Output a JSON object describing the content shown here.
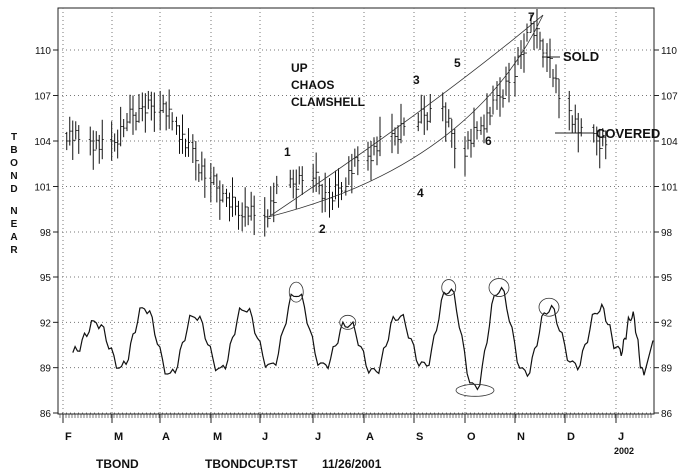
{
  "chart_data": {
    "type": "bar",
    "subtype": "ohlc-with-oscillator",
    "ylabel": "T B O N D   N E A R",
    "price_ticks": [
      "110",
      "107",
      "104",
      "101",
      "98"
    ],
    "oscillator_ticks": [
      "95",
      "92",
      "89",
      "86"
    ],
    "ylim_price": [
      96,
      112
    ],
    "ylim_oscillator": [
      86,
      96
    ],
    "grid": "dotted",
    "month_labels": [
      "F",
      "M",
      "A",
      "M",
      "J",
      "J",
      "A",
      "S",
      "O",
      "N",
      "D",
      "J"
    ],
    "year_label": "2002",
    "annotations": {
      "pattern": [
        "UP",
        "CHAOS",
        "CLAMSHELL"
      ],
      "points": [
        "1",
        "2",
        "3",
        "4",
        "5",
        "6",
        "7"
      ],
      "sold": "SOLD",
      "covered": "COVERED"
    },
    "price_series": [
      {
        "x": "Feb",
        "y": 104.5
      },
      {
        "x": "Feb",
        "y": 104.0
      },
      {
        "x": "Mar",
        "y": 103.5
      },
      {
        "x": "Mar",
        "y": 105.5
      },
      {
        "x": "Mar",
        "y": 106.0
      },
      {
        "x": "Apr",
        "y": 106.5
      },
      {
        "x": "Apr",
        "y": 105.0
      },
      {
        "x": "Apr",
        "y": 103.0
      },
      {
        "x": "May",
        "y": 101.5
      },
      {
        "x": "May",
        "y": 100.0
      },
      {
        "x": "May",
        "y": 99.5
      },
      {
        "x": "Jun",
        "y": 99.0
      },
      {
        "x": "Jun",
        "y": 101.0
      },
      {
        "x": "Jul",
        "y": 101.8
      },
      {
        "x": "Jul",
        "y": 100.0
      },
      {
        "x": "Jul",
        "y": 101.5
      },
      {
        "x": "Aug",
        "y": 103.0
      },
      {
        "x": "Aug",
        "y": 104.0
      },
      {
        "x": "Sep",
        "y": 105.5
      },
      {
        "x": "Sep",
        "y": 106.0
      },
      {
        "x": "Oct",
        "y": 103.5
      },
      {
        "x": "Oct",
        "y": 105.0
      },
      {
        "x": "Oct",
        "y": 106.5
      },
      {
        "x": "Nov",
        "y": 108.5
      },
      {
        "x": "Nov",
        "y": 111.5
      },
      {
        "x": "Nov",
        "y": 110.0
      },
      {
        "x": "Dec",
        "y": 106.0
      },
      {
        "x": "Dec",
        "y": 104.0
      }
    ],
    "oscillator_series": [
      {
        "x": "Feb",
        "y": 90.0
      },
      {
        "x": "Feb",
        "y": 92.0
      },
      {
        "x": "Mar",
        "y": 89.0
      },
      {
        "x": "Mar",
        "y": 93.0
      },
      {
        "x": "Apr",
        "y": 88.5
      },
      {
        "x": "Apr",
        "y": 92.5
      },
      {
        "x": "May",
        "y": 88.8
      },
      {
        "x": "May",
        "y": 93.0
      },
      {
        "x": "Jun",
        "y": 89.0
      },
      {
        "x": "Jun",
        "y": 94.0
      },
      {
        "x": "Jul",
        "y": 89.0
      },
      {
        "x": "Jul",
        "y": 92.0
      },
      {
        "x": "Aug",
        "y": 88.6
      },
      {
        "x": "Aug",
        "y": 92.5
      },
      {
        "x": "Sep",
        "y": 89.0
      },
      {
        "x": "Sep",
        "y": 94.3
      },
      {
        "x": "Oct",
        "y": 87.5
      },
      {
        "x": "Oct",
        "y": 94.3
      },
      {
        "x": "Nov",
        "y": 88.5
      },
      {
        "x": "Nov",
        "y": 93.0
      },
      {
        "x": "Dec",
        "y": 89.0
      },
      {
        "x": "Dec",
        "y": 93.0
      },
      {
        "x": "Jan",
        "y": 90.0
      },
      {
        "x": "Jan",
        "y": 92.5
      },
      {
        "x": "Jan",
        "y": 88.5
      }
    ]
  },
  "footer": {
    "symbol": "TBOND",
    "file": "TBONDCUP.TST",
    "date": "11/26/2001"
  }
}
